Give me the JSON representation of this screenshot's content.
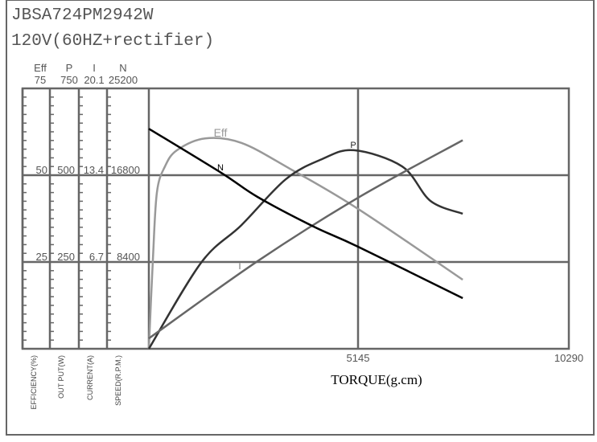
{
  "header": {
    "model": "JBSA724PM2942W",
    "supply": "120V(60HZ+rectifier)"
  },
  "chart_data": {
    "type": "line",
    "xlabel": "TORQUE(g.cm)",
    "x_ticks": [
      "5145",
      "10290"
    ],
    "xlim": [
      0,
      10290
    ],
    "grid": true,
    "axes": [
      {
        "key": "eff",
        "header": "Eff",
        "ticks": [
          "75",
          "50",
          "25"
        ],
        "max": 75,
        "label": "EFFICIENCY(%)"
      },
      {
        "key": "p",
        "header": "P",
        "ticks": [
          "750",
          "500",
          "250"
        ],
        "max": 750,
        "label": "OUT PUT(W)"
      },
      {
        "key": "i",
        "header": "I",
        "ticks": [
          "20.1",
          "13.4",
          "6.7"
        ],
        "max": 20.1,
        "label": "CURRENT(A)"
      },
      {
        "key": "n",
        "header": "N",
        "ticks": [
          "25200",
          "16800",
          "8400"
        ],
        "max": 25200,
        "label": "SPEED(R.P.M.)"
      }
    ],
    "series": [
      {
        "name": "Eff",
        "axis": "eff",
        "color": "#999999",
        "x": [
          0,
          99,
          197,
          394,
          690,
          1380,
          2267,
          3450,
          5125,
          7690
        ],
        "y": [
          0,
          25.7,
          45,
          52.5,
          57.2,
          60.6,
          59.3,
          51.9,
          40.3,
          19.9
        ]
      },
      {
        "name": "P",
        "axis": "p",
        "color": "#333333",
        "x": [
          0,
          1281,
          2267,
          3351,
          4238,
          5026,
          6209,
          6899,
          7690
        ],
        "y": [
          0,
          248,
          356,
          488,
          546,
          572,
          525,
          426,
          389
        ]
      },
      {
        "name": "I",
        "axis": "i",
        "color": "#666666",
        "x": [
          0,
          2661,
          5125,
          7690
        ],
        "y": [
          0.8,
          6.76,
          11.66,
          16.1
        ]
      },
      {
        "name": "N",
        "axis": "n",
        "color": "#000000",
        "x": [
          0,
          1774,
          2661,
          4040,
          5125,
          7690
        ],
        "y": [
          21300,
          17030,
          14700,
          11820,
          9880,
          4900
        ]
      }
    ]
  }
}
